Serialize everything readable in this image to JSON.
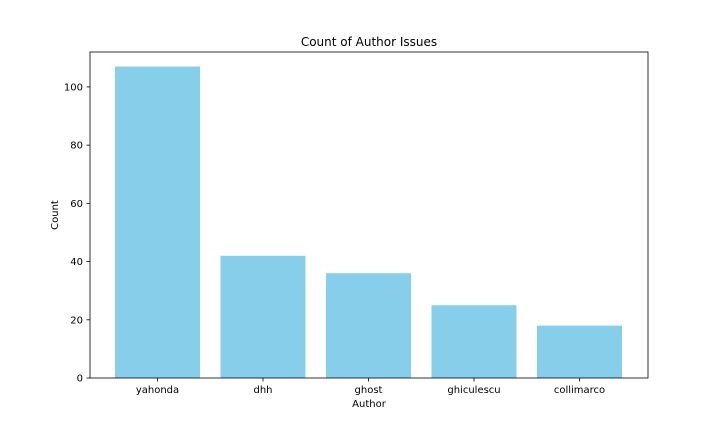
{
  "chart_data": {
    "type": "bar",
    "title": "Count of Author Issues",
    "xlabel": "Author",
    "ylabel": "Count",
    "categories": [
      "yahonda",
      "dhh",
      "ghost",
      "ghiculescu",
      "collimarco"
    ],
    "values": [
      107,
      42,
      36,
      25,
      18
    ],
    "ylim": [
      0,
      112
    ],
    "yticks": [
      0,
      20,
      40,
      60,
      80,
      100
    ],
    "bar_color": "#87ceeb",
    "grid": false,
    "legend": "none"
  }
}
